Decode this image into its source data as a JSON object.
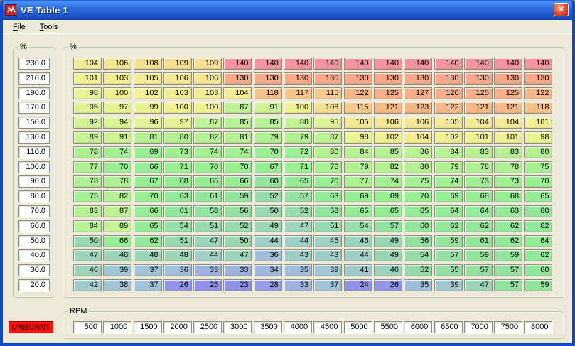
{
  "window": {
    "title": "VE Table 1"
  },
  "menu": {
    "items": [
      {
        "label": "File"
      },
      {
        "label": "Tools"
      }
    ]
  },
  "left_axis": {
    "unit_label": "%",
    "values": [
      "230.0",
      "210.0",
      "190.0",
      "170.0",
      "150.0",
      "130.0",
      "110.0",
      "100.0",
      "90.0",
      "80.0",
      "70.0",
      "60.0",
      "50.0",
      "40.0",
      "30.0",
      "20.0"
    ]
  },
  "table": {
    "unit_label": "%",
    "rows": [
      [
        104,
        106,
        108,
        109,
        109,
        140,
        140,
        140,
        140,
        140,
        140,
        140,
        140,
        140,
        140,
        140
      ],
      [
        101,
        103,
        105,
        106,
        106,
        130,
        130,
        130,
        130,
        130,
        130,
        130,
        130,
        130,
        130,
        130
      ],
      [
        98,
        100,
        102,
        103,
        103,
        104,
        118,
        117,
        115,
        122,
        125,
        127,
        126,
        125,
        125,
        122
      ],
      [
        95,
        97,
        99,
        100,
        100,
        87,
        91,
        100,
        108,
        115,
        121,
        123,
        122,
        121,
        121,
        118
      ],
      [
        92,
        94,
        96,
        97,
        87,
        85,
        85,
        88,
        95,
        105,
        106,
        106,
        105,
        104,
        104,
        101
      ],
      [
        89,
        91,
        81,
        80,
        82,
        81,
        79,
        79,
        87,
        98,
        102,
        104,
        102,
        101,
        101,
        98
      ],
      [
        78,
        74,
        69,
        73,
        74,
        74,
        70,
        72,
        80,
        84,
        85,
        86,
        84,
        83,
        83,
        80
      ],
      [
        77,
        70,
        66,
        71,
        70,
        70,
        67,
        71,
        76,
        79,
        82,
        80,
        79,
        78,
        78,
        75
      ],
      [
        78,
        78,
        67,
        68,
        65,
        66,
        60,
        65,
        70,
        77,
        74,
        75,
        74,
        73,
        73,
        70
      ],
      [
        75,
        82,
        70,
        63,
        61,
        59,
        52,
        57,
        63,
        69,
        69,
        70,
        69,
        68,
        68,
        65
      ],
      [
        83,
        87,
        66,
        61,
        58,
        56,
        50,
        52,
        58,
        65,
        65,
        65,
        64,
        64,
        63,
        60
      ],
      [
        84,
        89,
        65,
        54,
        51,
        52,
        49,
        47,
        51,
        54,
        57,
        60,
        62,
        62,
        62,
        62
      ],
      [
        50,
        66,
        62,
        51,
        47,
        50,
        44,
        44,
        45,
        46,
        49,
        56,
        59,
        61,
        62,
        64
      ],
      [
        47,
        48,
        48,
        48,
        44,
        47,
        36,
        43,
        43,
        44,
        49,
        54,
        57,
        59,
        59,
        62
      ],
      [
        46,
        39,
        37,
        36,
        33,
        33,
        34,
        35,
        39,
        41,
        46,
        52,
        55,
        57,
        57,
        60
      ],
      [
        42,
        38,
        37,
        26,
        25,
        23,
        28,
        33,
        37,
        24,
        26,
        35,
        39,
        47,
        57,
        59
      ]
    ]
  },
  "rpm_axis": {
    "label": "RPM",
    "values": [
      "500",
      "1000",
      "1500",
      "2000",
      "2500",
      "3000",
      "3500",
      "4000",
      "4500",
      "5000",
      "5500",
      "6000",
      "6500",
      "7000",
      "7500",
      "8000"
    ]
  },
  "status": {
    "unburnt_label": "UNBURNT",
    "unburnt_bg": "#FF1010",
    "unburnt_fg": "#660000"
  },
  "colors": {
    "window_bg": "#ECE9D8",
    "titlebar_blue": "#2E6FE3",
    "close_red": "#C11D0F",
    "scale": [
      {
        "v": 20,
        "c": "#8F8FEA"
      },
      {
        "v": 25,
        "c": "#9292EA"
      },
      {
        "v": 30,
        "c": "#98A4E2"
      },
      {
        "v": 35,
        "c": "#A1BDDC"
      },
      {
        "v": 40,
        "c": "#A0C9D2"
      },
      {
        "v": 45,
        "c": "#9DD2C2"
      },
      {
        "v": 50,
        "c": "#99D9B1"
      },
      {
        "v": 55,
        "c": "#95DFA5"
      },
      {
        "v": 60,
        "c": "#92E69C"
      },
      {
        "v": 65,
        "c": "#94EC96"
      },
      {
        "v": 70,
        "c": "#98F093"
      },
      {
        "v": 75,
        "c": "#A5F092"
      },
      {
        "v": 80,
        "c": "#B3F192"
      },
      {
        "v": 85,
        "c": "#B8F295"
      },
      {
        "v": 90,
        "c": "#C9F393"
      },
      {
        "v": 95,
        "c": "#DEF494"
      },
      {
        "v": 100,
        "c": "#F0F292"
      },
      {
        "v": 105,
        "c": "#F5E992"
      },
      {
        "v": 110,
        "c": "#F7DA8E"
      },
      {
        "v": 115,
        "c": "#F8C98A"
      },
      {
        "v": 120,
        "c": "#F8BC86"
      },
      {
        "v": 125,
        "c": "#F7AF87"
      },
      {
        "v": 130,
        "c": "#F7A98A"
      },
      {
        "v": 135,
        "c": "#F69D94"
      },
      {
        "v": 140,
        "c": "#F6949F"
      }
    ]
  }
}
